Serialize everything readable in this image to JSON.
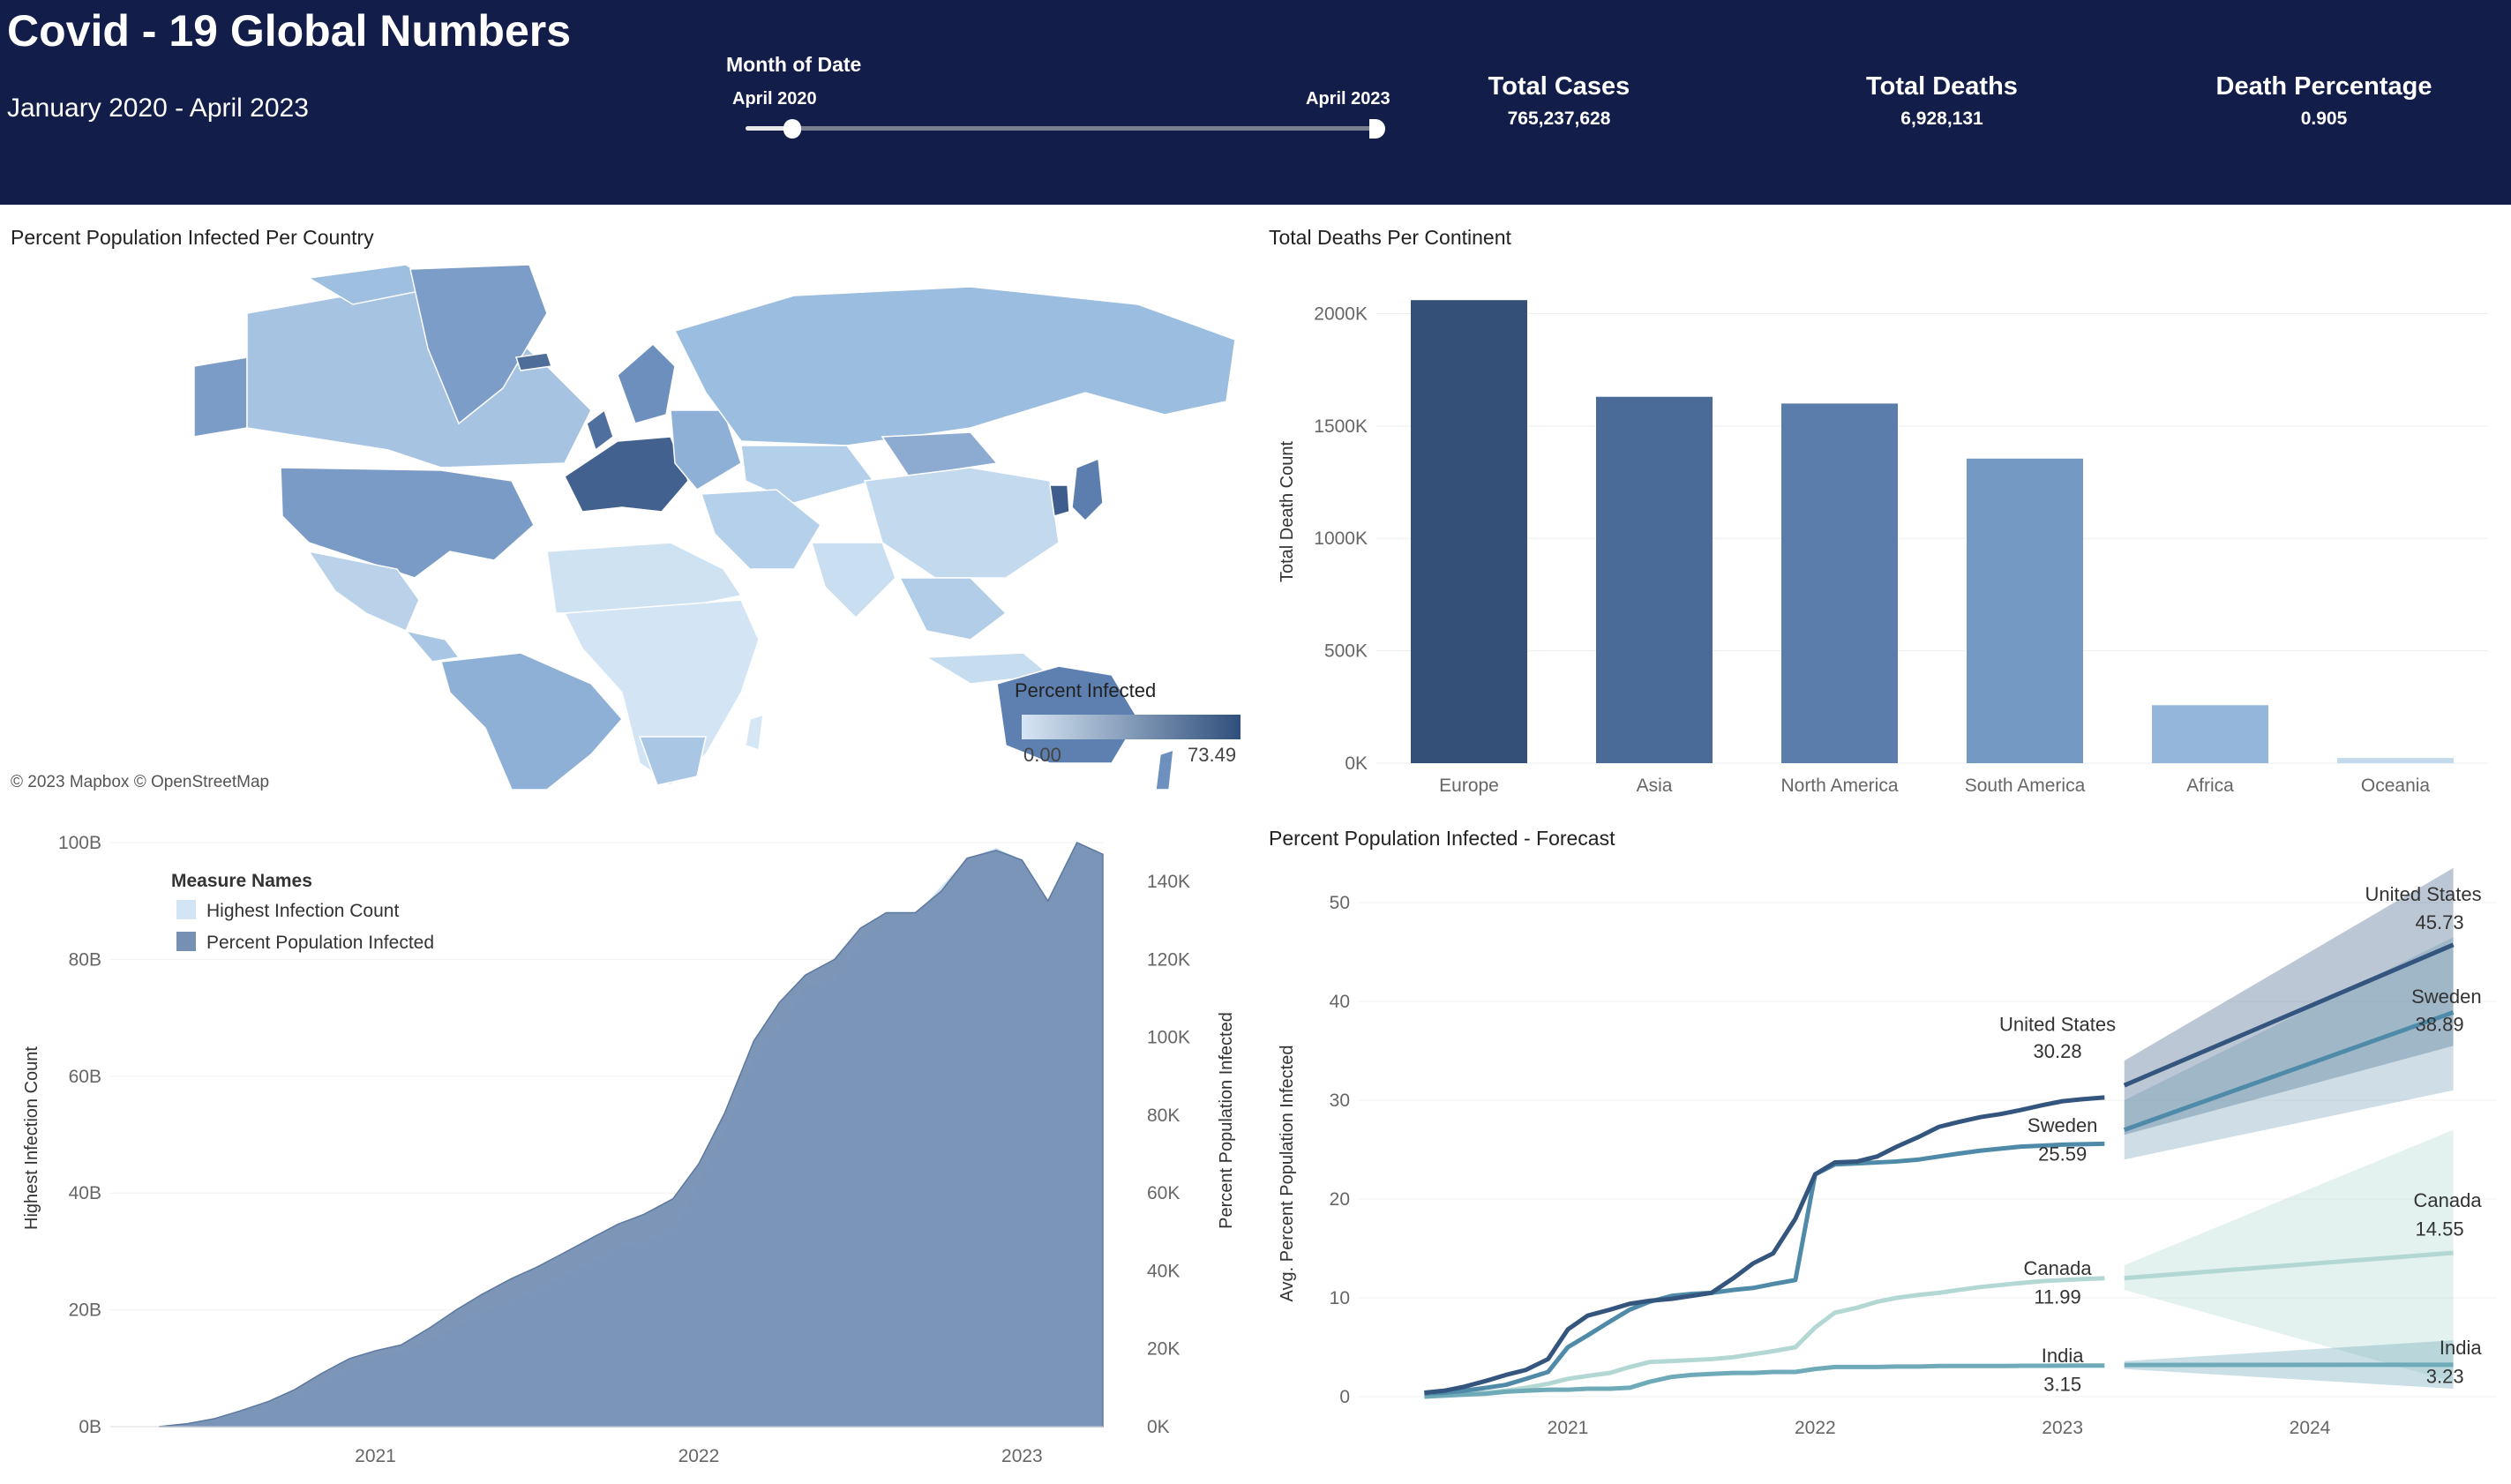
{
  "header": {
    "title": "Covid - 19 Global Numbers",
    "subtitle": "January 2020 - April 2023",
    "slider": {
      "label": "Month of Date",
      "start": "April 2020",
      "end": "April 2023"
    },
    "kpis": [
      {
        "label": "Total Cases",
        "value": "765,237,628"
      },
      {
        "label": "Total Deaths",
        "value": "6,928,131"
      },
      {
        "label": "Death Percentage",
        "value": "0.905"
      }
    ]
  },
  "map": {
    "title": "Percent Population Infected Per Country",
    "legend": {
      "title": "Percent Infected",
      "min": "0.00",
      "max": "73.49"
    },
    "credit": "© 2023 Mapbox  © OpenStreetMap",
    "colors": {
      "low": "#d7e6f4",
      "high": "#2f4f7c"
    }
  },
  "chart_data": [
    {
      "type": "bar",
      "title": "Total Deaths Per Continent",
      "ylabel": "Total Death Count",
      "categories": [
        "Europe",
        "Asia",
        "North America",
        "South America",
        "Africa",
        "Oceania"
      ],
      "values": [
        2060000,
        1630000,
        1600000,
        1355000,
        258000,
        23000
      ],
      "ylim": [
        0,
        2100000
      ],
      "yticks": [
        0,
        500000,
        1000000,
        1500000,
        2000000
      ],
      "ytick_labels": [
        "0K",
        "500K",
        "1000K",
        "1500K",
        "2000K"
      ],
      "colors": [
        "#344f78",
        "#4a6a98",
        "#5a7dab",
        "#7499c2",
        "#94b6da",
        "#c2daec"
      ]
    },
    {
      "type": "area",
      "title": "",
      "ylabel_left": "Highest Infection Count",
      "ylabel_right": "Percent Population Infected",
      "legend": {
        "title": "Measure Names",
        "entries": [
          "Highest Infection Count",
          "Percent Population Infected"
        ]
      },
      "colors": [
        "#d3e5f5",
        "#7690b4"
      ],
      "x_range": [
        2020.33,
        2023.25
      ],
      "xticks": [
        "2021",
        "2022",
        "2023"
      ],
      "yticks_left": [
        "0B",
        "20B",
        "40B",
        "60B",
        "80B",
        "100B"
      ],
      "yticks_right": [
        "0K",
        "20K",
        "40K",
        "60K",
        "80K",
        "100K",
        "120K",
        "140K"
      ],
      "ylim_left": [
        0,
        100000000000
      ],
      "ylim_right": [
        0,
        150000
      ],
      "series": [
        {
          "name": "Highest Infection Count",
          "x": [
            2020.33,
            2020.42,
            2020.5,
            2020.58,
            2020.67,
            2020.75,
            2020.83,
            2020.92,
            2021.0,
            2021.08,
            2021.17,
            2021.25,
            2021.33,
            2021.42,
            2021.5,
            2021.58,
            2021.67,
            2021.75,
            2021.83,
            2021.92,
            2022.0,
            2022.08,
            2022.17,
            2022.25,
            2022.33,
            2022.42,
            2022.5,
            2022.58,
            2022.67,
            2022.75,
            2022.83,
            2022.92,
            2023.0,
            2023.08,
            2023.17,
            2023.25
          ],
          "values": [
            0.1,
            0.6,
            1.5,
            2.6,
            3.9,
            5.6,
            7.8,
            10.3,
            12.2,
            12.8,
            15.0,
            17.3,
            19.8,
            21.5,
            23.3,
            25.6,
            28.0,
            30.8,
            31.4,
            33.5,
            41.5,
            50.5,
            63.5,
            68.5,
            75.5,
            76.5,
            83.5,
            87.5,
            87.5,
            92.5,
            97.2,
            99.1,
            97.0,
            89.5,
            100.0,
            98.0
          ]
        },
        {
          "name": "Percent Population Infected",
          "x": [
            2020.33,
            2020.42,
            2020.5,
            2020.58,
            2020.67,
            2020.75,
            2020.83,
            2020.92,
            2021.0,
            2021.08,
            2021.17,
            2021.25,
            2021.33,
            2021.42,
            2021.5,
            2021.58,
            2021.67,
            2021.75,
            2021.83,
            2021.92,
            2022.0,
            2022.08,
            2022.17,
            2022.25,
            2022.33,
            2022.42,
            2022.5,
            2022.58,
            2022.67,
            2022.75,
            2022.83,
            2022.92,
            2023.0,
            2023.08,
            2023.17,
            2023.25
          ],
          "values": [
            0,
            800,
            2000,
            4000,
            6500,
            9500,
            13500,
            17500,
            19500,
            21000,
            25500,
            30000,
            34000,
            38000,
            41000,
            44500,
            48500,
            52000,
            54500,
            58500,
            67500,
            80500,
            99000,
            109000,
            116000,
            120000,
            128000,
            132000,
            132000,
            137500,
            146000,
            148000,
            145500,
            135000,
            150000,
            147000
          ]
        }
      ]
    },
    {
      "type": "line",
      "title": "Percent Population Infected - Forecast",
      "ylabel": "Avg. Percent Population Infected",
      "xticks": [
        "2021",
        "2022",
        "2023",
        "2024"
      ],
      "yticks": [
        0,
        10,
        20,
        30,
        40,
        50
      ],
      "ylim": [
        0,
        50
      ],
      "x_range": [
        2020.42,
        2024.65
      ],
      "series": [
        {
          "name": "United States",
          "color": "#34557e",
          "x": [
            2020.42,
            2020.5,
            2020.58,
            2020.67,
            2020.75,
            2020.83,
            2020.92,
            2021.0,
            2021.08,
            2021.17,
            2021.25,
            2021.33,
            2021.42,
            2021.5,
            2021.58,
            2021.67,
            2021.75,
            2021.83,
            2021.92,
            2022.0,
            2022.08,
            2022.17,
            2022.25,
            2022.33,
            2022.42,
            2022.5,
            2022.58,
            2022.67,
            2022.75,
            2022.83,
            2022.92,
            2023.0,
            2023.08,
            2023.17
          ],
          "y": [
            0.4,
            0.6,
            1.0,
            1.6,
            2.2,
            2.7,
            3.8,
            6.8,
            8.2,
            8.8,
            9.4,
            9.7,
            9.9,
            10.2,
            10.5,
            12.0,
            13.5,
            14.5,
            18.0,
            22.5,
            23.7,
            23.8,
            24.3,
            25.3,
            26.3,
            27.3,
            27.8,
            28.3,
            28.6,
            29.0,
            29.5,
            29.9,
            30.1,
            30.28
          ],
          "label": "30.28",
          "forecast": {
            "x": [
              2023.25,
              2024.58
            ],
            "y": [
              31.5,
              45.73
            ],
            "band_low": [
              26.5,
              35.5
            ],
            "band_high": [
              34.0,
              53.5
            ],
            "label": "45.73"
          }
        },
        {
          "name": "Sweden",
          "color": "#4f8ba8",
          "x": [
            2020.42,
            2020.5,
            2020.58,
            2020.67,
            2020.75,
            2020.83,
            2020.92,
            2021.0,
            2021.08,
            2021.17,
            2021.25,
            2021.33,
            2021.42,
            2021.5,
            2021.58,
            2021.67,
            2021.75,
            2021.83,
            2021.92,
            2022.0,
            2022.08,
            2022.17,
            2022.25,
            2022.33,
            2022.42,
            2022.5,
            2022.58,
            2022.67,
            2022.75,
            2022.83,
            2022.92,
            2023.0,
            2023.08,
            2023.17
          ],
          "y": [
            0.3,
            0.4,
            0.6,
            0.9,
            1.2,
            1.8,
            2.5,
            5.0,
            6.2,
            7.6,
            8.8,
            9.6,
            10.2,
            10.4,
            10.5,
            10.8,
            11.0,
            11.4,
            11.8,
            22.5,
            23.5,
            23.6,
            23.7,
            23.8,
            24.0,
            24.3,
            24.6,
            24.9,
            25.1,
            25.3,
            25.4,
            25.5,
            25.55,
            25.59
          ],
          "label": "25.59",
          "forecast": {
            "x": [
              2023.25,
              2024.58
            ],
            "y": [
              27.0,
              38.89
            ],
            "band_low": [
              24.0,
              31.0
            ],
            "band_high": [
              30.0,
              46.5
            ],
            "label": "38.89"
          }
        },
        {
          "name": "Canada",
          "color": "#b3d8d3",
          "x": [
            2020.42,
            2020.5,
            2020.58,
            2020.67,
            2020.75,
            2020.83,
            2020.92,
            2021.0,
            2021.08,
            2021.17,
            2021.25,
            2021.33,
            2021.42,
            2021.5,
            2021.58,
            2021.67,
            2021.75,
            2021.83,
            2021.92,
            2022.0,
            2022.08,
            2022.17,
            2022.25,
            2022.33,
            2022.42,
            2022.5,
            2022.58,
            2022.67,
            2022.75,
            2022.83,
            2022.92,
            2023.0,
            2023.08,
            2023.17
          ],
          "y": [
            0.2,
            0.2,
            0.3,
            0.4,
            0.6,
            0.9,
            1.3,
            1.8,
            2.1,
            2.4,
            3.0,
            3.5,
            3.6,
            3.7,
            3.8,
            4.0,
            4.3,
            4.6,
            5.0,
            7.0,
            8.5,
            9.0,
            9.6,
            10.0,
            10.3,
            10.5,
            10.8,
            11.1,
            11.3,
            11.5,
            11.7,
            11.8,
            11.9,
            11.99
          ],
          "label": "11.99",
          "forecast": {
            "x": [
              2023.25,
              2024.58
            ],
            "y": [
              12.0,
              14.55
            ],
            "band_low": [
              10.8,
              1.5
            ],
            "band_high": [
              13.3,
              27.0
            ],
            "label": "14.55"
          }
        },
        {
          "name": "India",
          "color": "#6faab8",
          "x": [
            2020.42,
            2020.5,
            2020.58,
            2020.67,
            2020.75,
            2020.83,
            2020.92,
            2021.0,
            2021.08,
            2021.17,
            2021.25,
            2021.33,
            2021.42,
            2021.5,
            2021.58,
            2021.67,
            2021.75,
            2021.83,
            2021.92,
            2022.0,
            2022.08,
            2022.17,
            2022.25,
            2022.33,
            2022.42,
            2022.5,
            2022.58,
            2022.67,
            2022.75,
            2022.83,
            2022.92,
            2023.0,
            2023.08,
            2023.17
          ],
          "y": [
            0.0,
            0.1,
            0.2,
            0.3,
            0.5,
            0.6,
            0.7,
            0.7,
            0.8,
            0.8,
            0.9,
            1.5,
            2.0,
            2.2,
            2.3,
            2.4,
            2.4,
            2.5,
            2.5,
            2.8,
            3.0,
            3.0,
            3.0,
            3.05,
            3.05,
            3.1,
            3.1,
            3.1,
            3.1,
            3.12,
            3.13,
            3.14,
            3.15,
            3.15
          ],
          "label": "3.15",
          "forecast": {
            "x": [
              2023.25,
              2024.58
            ],
            "y": [
              3.2,
              3.23
            ],
            "band_low": [
              2.8,
              0.8
            ],
            "band_high": [
              3.6,
              5.7
            ],
            "label": "3.23"
          }
        }
      ]
    }
  ]
}
